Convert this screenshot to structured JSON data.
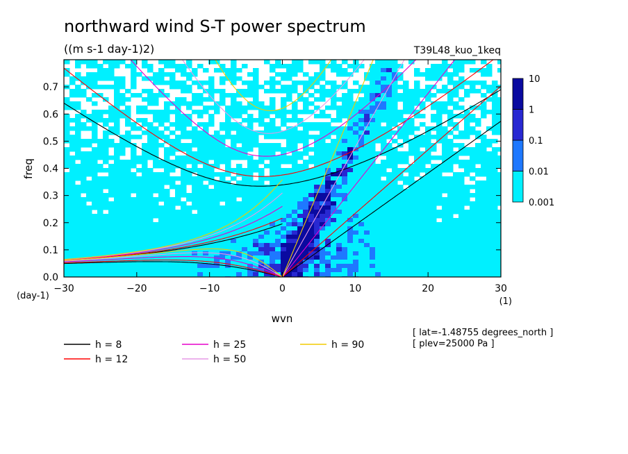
{
  "chart_data": {
    "type": "heatmap",
    "title": "northward wind S-T power spectrum",
    "subtitle": "((m s-1 day-1)2)",
    "run_label": "T39L48_kuo_1keq",
    "xlabel": "wvn",
    "xunit": "(1)",
    "ylabel": "freq",
    "yunit": "(day-1)",
    "xlim": [
      -30,
      30
    ],
    "ylim": [
      0,
      0.8
    ],
    "xticks": [
      -30,
      -20,
      -10,
      0,
      10,
      20,
      30
    ],
    "yticks": [
      0.0,
      0.1,
      0.2,
      0.3,
      0.4,
      0.5,
      0.6,
      0.7
    ],
    "colorbar": {
      "levels": [
        "0.001",
        "0.01",
        "0.1",
        "1",
        "10"
      ],
      "colors": [
        "#00f0ff",
        "#1e78ff",
        "#2828d2",
        "#0a0aa0"
      ]
    },
    "series": [
      {
        "name": "h =  8",
        "h": 8,
        "color": "#000000"
      },
      {
        "name": "h = 12",
        "h": 12,
        "color": "#ff0000"
      },
      {
        "name": "h = 25",
        "h": 25,
        "color": "#e600cc"
      },
      {
        "name": "h = 50",
        "h": 50,
        "color": "#e699e6"
      },
      {
        "name": "h = 90",
        "h": 90,
        "color": "#f2cc00"
      }
    ],
    "annotations": [
      "[ lat=-1.48755 degrees_north ]",
      "[ plev=25000 Pa ]"
    ]
  }
}
